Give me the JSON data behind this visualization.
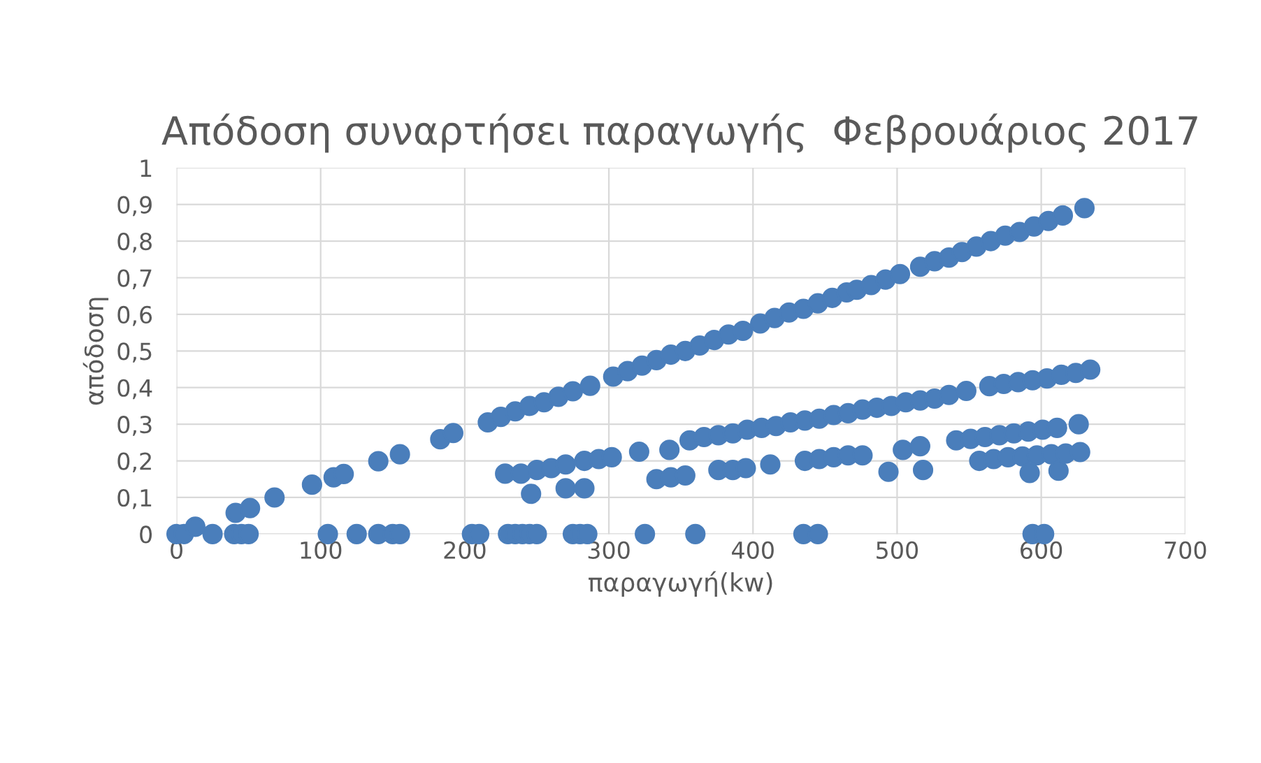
{
  "chart_data": {
    "type": "scatter",
    "title": "Απόδοση συναρτήσει παραγωγής  Φεβρουάριος 2017",
    "xlabel": "παραγωγή(kw)",
    "ylabel": "απόδοση",
    "xlim": [
      0,
      700
    ],
    "ylim": [
      0,
      1
    ],
    "xticks": [
      0,
      100,
      200,
      300,
      400,
      500,
      600,
      700
    ],
    "yticks": [
      {
        "value": 0,
        "label": "0"
      },
      {
        "value": 0.1,
        "label": "0,1"
      },
      {
        "value": 0.2,
        "label": "0,2"
      },
      {
        "value": 0.3,
        "label": "0,3"
      },
      {
        "value": 0.4,
        "label": "0,4"
      },
      {
        "value": 0.5,
        "label": "0,5"
      },
      {
        "value": 0.6,
        "label": "0,6"
      },
      {
        "value": 0.7,
        "label": "0,7"
      },
      {
        "value": 0.8,
        "label": "0,8"
      },
      {
        "value": 0.9,
        "label": "0,9"
      },
      {
        "value": 1,
        "label": "1"
      }
    ],
    "grid": true,
    "marker": "circle",
    "legend": false,
    "series": [
      {
        "color": "#4a7ebb",
        "x": [
          0,
          5,
          13,
          25,
          40,
          45,
          50,
          105,
          125,
          140,
          150,
          155,
          205,
          210,
          230,
          235,
          240,
          245,
          250,
          275,
          280,
          285,
          325,
          360,
          435,
          445,
          594,
          602
        ],
        "values": [
          0,
          0,
          0.02,
          0,
          0,
          0,
          0,
          0,
          0,
          0,
          0,
          0,
          0,
          0,
          0,
          0,
          0,
          0,
          0,
          0,
          0,
          0,
          0,
          0,
          0,
          0,
          0,
          0
        ]
      },
      {
        "color": "#4a7ebb",
        "x": [
          41,
          51,
          68,
          94,
          109,
          116,
          140,
          155,
          183,
          192,
          216,
          225,
          235,
          245,
          255,
          265,
          275,
          287,
          303,
          313,
          323,
          333,
          343,
          353,
          363,
          373,
          383,
          393,
          405,
          415,
          425,
          435,
          445,
          455,
          465,
          472,
          482,
          492,
          502,
          516,
          526,
          536,
          545,
          555,
          565,
          575,
          585,
          595,
          605,
          615,
          630
        ],
        "values": [
          0.058,
          0.071,
          0.1,
          0.135,
          0.155,
          0.164,
          0.199,
          0.218,
          0.259,
          0.276,
          0.305,
          0.32,
          0.335,
          0.35,
          0.36,
          0.375,
          0.39,
          0.405,
          0.43,
          0.445,
          0.46,
          0.475,
          0.49,
          0.5,
          0.515,
          0.53,
          0.545,
          0.555,
          0.575,
          0.59,
          0.605,
          0.615,
          0.63,
          0.645,
          0.66,
          0.667,
          0.68,
          0.695,
          0.71,
          0.73,
          0.745,
          0.755,
          0.77,
          0.785,
          0.8,
          0.815,
          0.825,
          0.84,
          0.855,
          0.87,
          0.89
        ]
      },
      {
        "color": "#4a7ebb",
        "x": [
          228,
          250,
          260,
          270,
          283,
          293,
          302,
          321,
          342,
          356,
          366,
          376,
          386,
          396,
          406,
          416,
          426,
          436,
          446,
          456,
          466,
          476,
          486,
          496,
          506,
          516,
          526,
          536,
          548,
          564,
          574,
          584,
          594,
          604,
          614,
          624,
          634
        ],
        "values": [
          0.165,
          0.175,
          0.18,
          0.19,
          0.2,
          0.205,
          0.21,
          0.225,
          0.23,
          0.256,
          0.265,
          0.27,
          0.275,
          0.285,
          0.29,
          0.295,
          0.305,
          0.31,
          0.315,
          0.325,
          0.33,
          0.34,
          0.345,
          0.35,
          0.36,
          0.365,
          0.37,
          0.38,
          0.391,
          0.404,
          0.41,
          0.415,
          0.42,
          0.425,
          0.435,
          0.44,
          0.449
        ]
      },
      {
        "color": "#4a7ebb",
        "x": [
          239,
          246,
          270,
          283,
          333,
          343,
          353,
          376,
          386,
          395,
          412,
          436,
          446,
          456,
          466,
          476,
          494,
          504,
          516,
          518,
          541,
          551,
          561,
          571,
          581,
          591,
          601,
          611,
          626
        ],
        "values": [
          0.165,
          0.11,
          0.125,
          0.125,
          0.15,
          0.155,
          0.16,
          0.175,
          0.175,
          0.18,
          0.19,
          0.2,
          0.205,
          0.21,
          0.215,
          0.215,
          0.17,
          0.23,
          0.24,
          0.175,
          0.256,
          0.26,
          0.265,
          0.27,
          0.275,
          0.28,
          0.285,
          0.29,
          0.3
        ]
      },
      {
        "color": "#4a7ebb",
        "x": [
          557,
          567,
          577,
          587,
          592,
          597,
          607,
          612,
          617,
          627
        ],
        "values": [
          0.2,
          0.205,
          0.21,
          0.212,
          0.167,
          0.215,
          0.218,
          0.173,
          0.22,
          0.224
        ]
      }
    ]
  }
}
